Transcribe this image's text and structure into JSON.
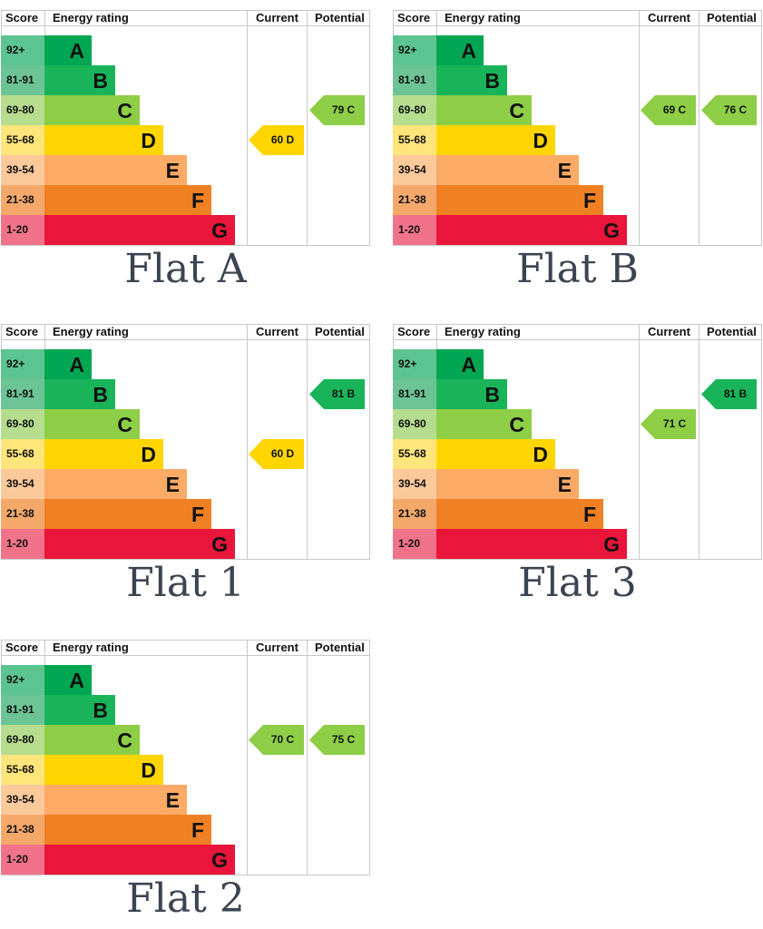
{
  "colors": {
    "A": "#00a651",
    "B": "#19b459",
    "C": "#8dce46",
    "D": "#ffd500",
    "E": "#fcaa65",
    "F": "#ef8023",
    "G": "#e9153b",
    "score_A": "#5cc490",
    "score_B": "#6cc495",
    "score_C": "#b6dc8e",
    "score_D": "#ffe57a",
    "score_E": "#fcc99b",
    "score_F": "#f4a96b",
    "score_G": "#f0738a"
  },
  "headers": {
    "score": "Score",
    "rating": "Energy rating",
    "current": "Current",
    "potential": "Potential"
  },
  "bands": [
    {
      "score": "92+",
      "letter": "A"
    },
    {
      "score": "81-91",
      "letter": "B"
    },
    {
      "score": "69-80",
      "letter": "C"
    },
    {
      "score": "55-68",
      "letter": "D"
    },
    {
      "score": "39-54",
      "letter": "E"
    },
    {
      "score": "21-38",
      "letter": "F"
    },
    {
      "score": "1-20",
      "letter": "G"
    }
  ],
  "chart_data": [
    {
      "type": "table",
      "title": "Flat A",
      "current": {
        "value": 60,
        "band": "D"
      },
      "potential": {
        "value": 79,
        "band": "C"
      }
    },
    {
      "type": "table",
      "title": "Flat B",
      "current": {
        "value": 69,
        "band": "C"
      },
      "potential": {
        "value": 76,
        "band": "C"
      }
    },
    {
      "type": "table",
      "title": "Flat 1",
      "current": {
        "value": 60,
        "band": "D"
      },
      "potential": {
        "value": 81,
        "band": "B"
      }
    },
    {
      "type": "table",
      "title": "Flat 3",
      "current": {
        "value": 71,
        "band": "C"
      },
      "potential": {
        "value": 81,
        "band": "B"
      }
    },
    {
      "type": "table",
      "title": "Flat 2",
      "current": {
        "value": 70,
        "band": "C"
      },
      "potential": {
        "value": 75,
        "band": "C"
      }
    }
  ]
}
